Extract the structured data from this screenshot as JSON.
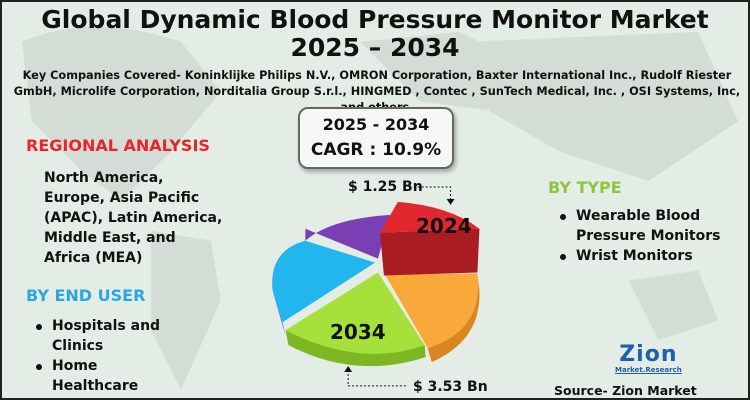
{
  "title_line1": "Global Dynamic Blood Pressure Monitor Market",
  "title_line2": "2025 – 2034",
  "companies": "Key Companies Covered- Koninklijke Philips N.V., OMRON Corporation, Baxter International Inc., Rudolf Riester GmbH, Microlife Corporation, Norditalia Group S.r.l., HINGMED , Contec , SunTech Medical, Inc. , OSI Systems, Inc, and others.",
  "cagr": {
    "period": "2025 - 2034",
    "label": "CAGR : 10.9%"
  },
  "regional": {
    "heading": "REGIONAL ANALYSIS",
    "text": "North America, Europe, Asia Pacific (APAC), Latin America, Middle East, and Africa (MEA)",
    "color": "#e8262a"
  },
  "end_user": {
    "heading": "BY END USER",
    "items": [
      "Hospitals and Clinics",
      "Home Healthcare"
    ],
    "color": "#2aa7e0"
  },
  "by_type": {
    "heading": "BY TYPE",
    "items": [
      "Wearable Blood Pressure Monitors",
      "Wrist Monitors"
    ],
    "color": "#8cc63f"
  },
  "pie": {
    "value_2024": "$ 1.25 Bn",
    "label_2024": "2024",
    "value_2034": "$ 3.53 Bn",
    "label_2034": "2034",
    "colors": {
      "red": "#e0282e",
      "orange": "#f9a93a",
      "green": "#a6e03a",
      "blue": "#22b5ee",
      "purple": "#7b3fb5"
    }
  },
  "logo": {
    "name": "Zion",
    "sub": "Market.Research"
  },
  "source": "Source- Zion Market Research"
}
